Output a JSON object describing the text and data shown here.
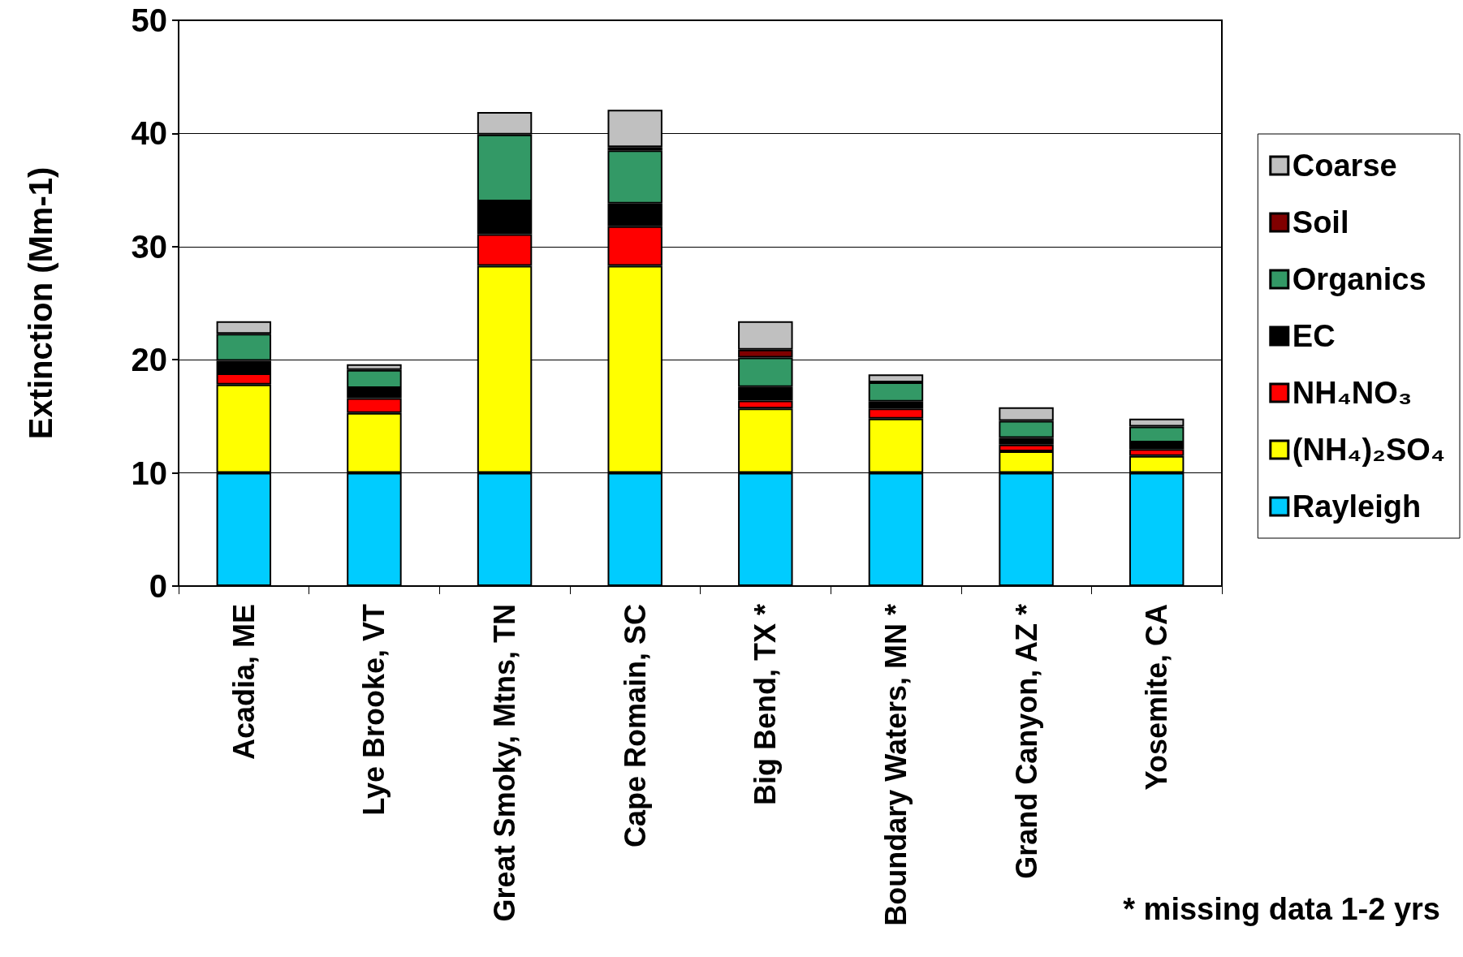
{
  "chart_data": {
    "type": "bar",
    "stacked": true,
    "ylabel": "Extinction (Mm-1)",
    "categories": [
      "Acadia, ME",
      "Lye Brooke, VT",
      "Great Smoky, Mtns, TN",
      "Cape Romain, SC",
      "Big Bend, TX *",
      "Boundary Waters, MN *",
      "Grand Canyon, AZ *",
      "Yosemite, CA"
    ],
    "series": [
      {
        "name": "Rayleigh",
        "color": "#00ccff",
        "values": [
          10,
          10,
          10,
          10,
          10,
          10,
          10,
          10
        ]
      },
      {
        "name": "(NH₄)₂SO₄",
        "color": "#ffff00",
        "values": [
          7.8,
          5.3,
          18.3,
          18.3,
          5.7,
          4.8,
          1.9,
          1.5
        ]
      },
      {
        "name": "NH₄NO₃",
        "color": "#ff0000",
        "values": [
          1.0,
          1.3,
          2.8,
          3.5,
          0.7,
          0.9,
          0.6,
          0.6
        ]
      },
      {
        "name": "EC",
        "color": "#000000",
        "values": [
          1.1,
          0.9,
          2.9,
          2.0,
          1.2,
          0.6,
          0.6,
          0.6
        ]
      },
      {
        "name": "Organics",
        "color": "#339966",
        "values": [
          2.4,
          1.6,
          5.9,
          4.7,
          2.6,
          1.7,
          1.5,
          1.4
        ]
      },
      {
        "name": "Soil",
        "color": "#800000",
        "values": [
          null,
          null,
          null,
          0.3,
          0.7,
          null,
          null,
          null
        ]
      },
      {
        "name": "Coarse",
        "color": "#c0c0c0",
        "values": [
          1.1,
          0.5,
          2.0,
          3.3,
          2.5,
          0.7,
          1.2,
          0.7
        ]
      }
    ],
    "ylim": [
      0,
      50
    ],
    "yticks": [
      0,
      10,
      20,
      30,
      40,
      50
    ],
    "grid": "y",
    "legend": "right",
    "annotations": [
      "* missing data 1-2 yrs"
    ]
  }
}
